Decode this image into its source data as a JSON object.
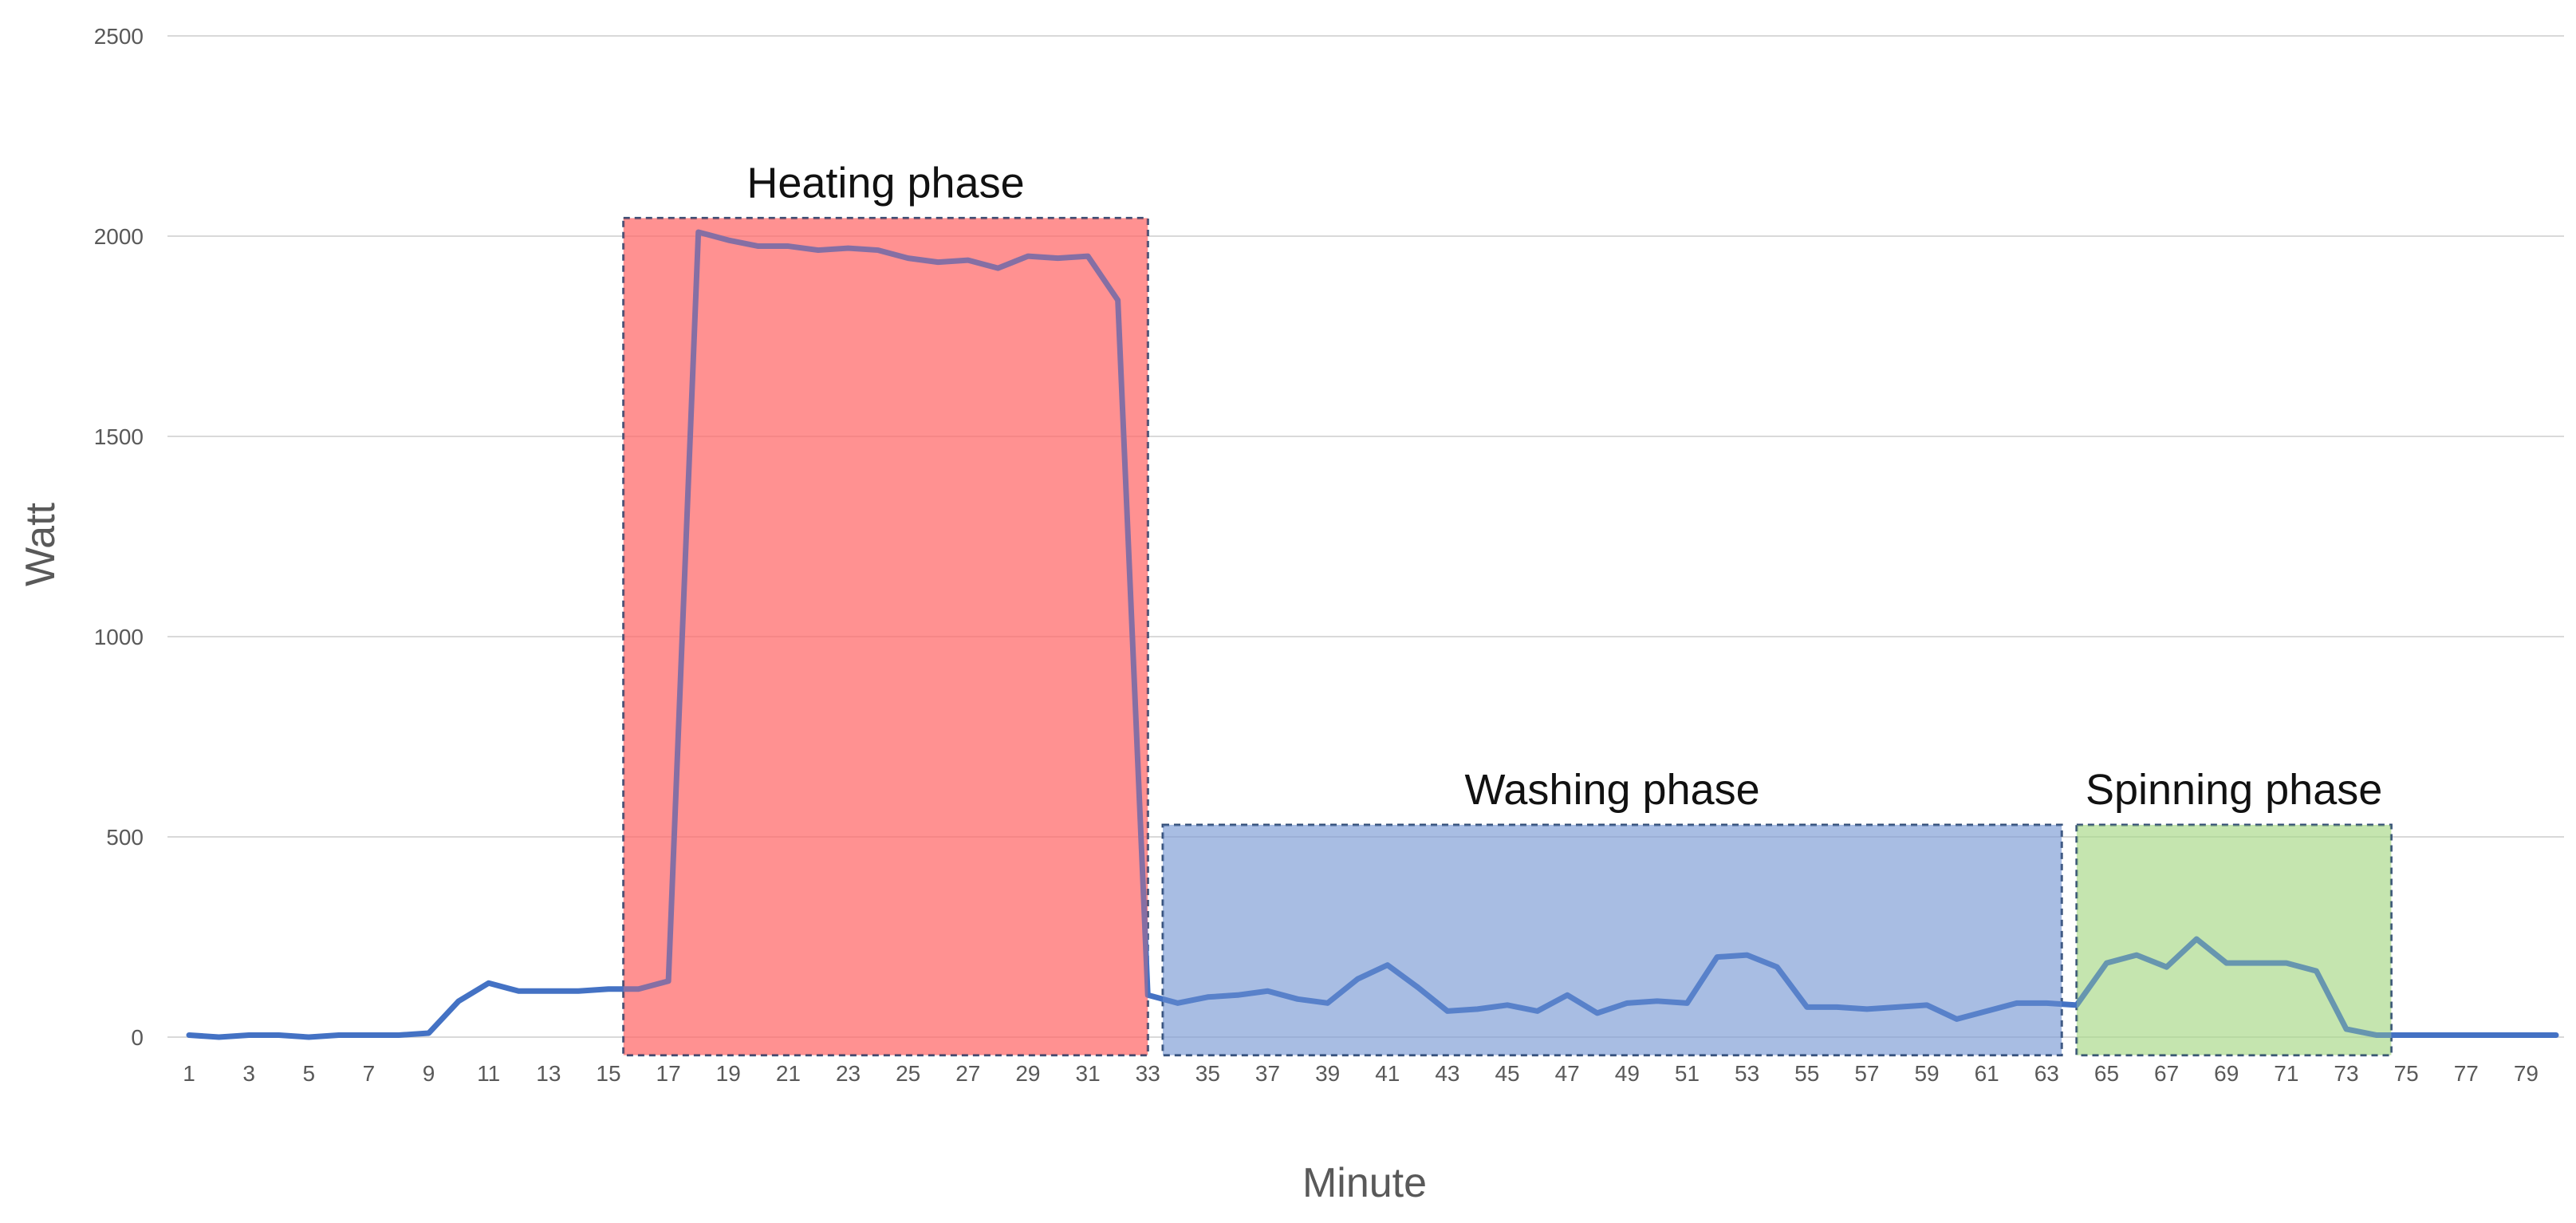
{
  "chart_data": {
    "type": "line",
    "xlabel": "Minute",
    "ylabel": "Watt",
    "ylim": [
      0,
      2500
    ],
    "yticks": [
      0,
      500,
      1000,
      1500,
      2000,
      2500
    ],
    "xlim": [
      1,
      80
    ],
    "xtick_labels": [
      1,
      3,
      5,
      7,
      9,
      11,
      13,
      15,
      17,
      19,
      21,
      23,
      25,
      27,
      29,
      31,
      33,
      35,
      37,
      39,
      41,
      43,
      45,
      47,
      49,
      51,
      53,
      55,
      57,
      59,
      61,
      63,
      65,
      67,
      69,
      71,
      73,
      75,
      77,
      79
    ],
    "grid": "horizontal",
    "series": [
      {
        "color": "#4472c4",
        "x": [
          1,
          2,
          3,
          4,
          5,
          6,
          7,
          8,
          9,
          10,
          11,
          12,
          13,
          14,
          15,
          16,
          17,
          18,
          19,
          20,
          21,
          22,
          23,
          24,
          25,
          26,
          27,
          28,
          29,
          30,
          31,
          32,
          33,
          34,
          35,
          36,
          37,
          38,
          39,
          40,
          41,
          42,
          43,
          44,
          45,
          46,
          47,
          48,
          49,
          50,
          51,
          52,
          53,
          54,
          55,
          56,
          57,
          58,
          59,
          60,
          61,
          62,
          63,
          64,
          65,
          66,
          67,
          68,
          69,
          70,
          71,
          72,
          73,
          74,
          75,
          76,
          77,
          78,
          79,
          80
        ],
        "y": [
          5,
          0,
          5,
          5,
          0,
          5,
          5,
          5,
          10,
          90,
          135,
          115,
          115,
          115,
          120,
          120,
          140,
          2010,
          1990,
          1975,
          1975,
          1965,
          1970,
          1965,
          1945,
          1935,
          1940,
          1920,
          1950,
          1945,
          1950,
          1840,
          105,
          85,
          100,
          105,
          115,
          95,
          85,
          145,
          180,
          125,
          65,
          70,
          80,
          65,
          105,
          60,
          85,
          90,
          85,
          200,
          205,
          175,
          75,
          75,
          70,
          75,
          80,
          45,
          65,
          85,
          85,
          80,
          185,
          205,
          175,
          245,
          185,
          185,
          185,
          165,
          20,
          5,
          5,
          5,
          5,
          5,
          5,
          5
        ]
      }
    ],
    "annotations": [
      {
        "label": "Heating phase",
        "x_start": 15.5,
        "x_end": 33.0,
        "y_top": 2045,
        "y_bottom": -45,
        "fill": "#ff6b6b",
        "fill_opacity": 0.6
      },
      {
        "label": "Washing phase",
        "x_start": 33.5,
        "x_end": 63.5,
        "y_top": 530,
        "y_bottom": -45,
        "fill": "#7f9ed6",
        "fill_opacity": 0.5
      },
      {
        "label": "Spinning phase",
        "x_start": 64.0,
        "x_end": 74.5,
        "y_top": 530,
        "y_bottom": -45,
        "fill": "#a9d98a",
        "fill_opacity": 0.5
      }
    ]
  }
}
